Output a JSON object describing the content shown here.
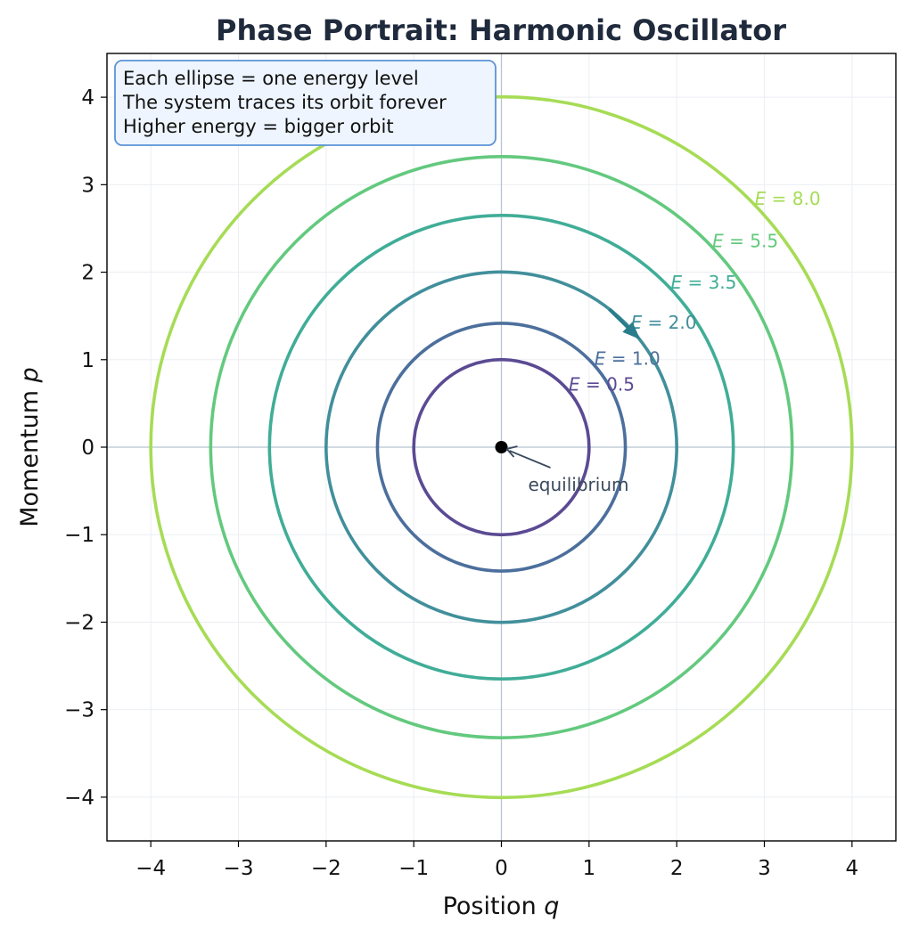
{
  "chart_data": {
    "type": "line",
    "title": "Phase Portrait: Harmonic Oscillator",
    "xlabel_text": "Position ",
    "xlabel_var": "q",
    "ylabel_text": "Momentum ",
    "ylabel_var": "p",
    "xlim": [
      -4.5,
      4.5
    ],
    "ylim": [
      -4.5,
      4.5
    ],
    "xticks": [
      -4,
      -3,
      -2,
      -1,
      0,
      1,
      2,
      3,
      4
    ],
    "yticks": [
      -4,
      -3,
      -2,
      -1,
      0,
      1,
      2,
      3,
      4
    ],
    "grid": true,
    "series": [
      {
        "energy": 0.5,
        "radius": 1.0,
        "color": "#5b4a93",
        "label_var": "E",
        "label_val": " = 0.5"
      },
      {
        "energy": 1.0,
        "radius": 1.414,
        "color": "#4c6f9c",
        "label_var": "E",
        "label_val": " = 1.0"
      },
      {
        "energy": 2.0,
        "radius": 2.0,
        "color": "#418f9b",
        "label_var": "E",
        "label_val": " = 2.0"
      },
      {
        "energy": 3.5,
        "radius": 2.646,
        "color": "#40ad97",
        "label_var": "E",
        "label_val": " = 3.5"
      },
      {
        "energy": 5.5,
        "radius": 3.317,
        "color": "#63c97e",
        "label_var": "E",
        "label_val": " = 5.5"
      },
      {
        "energy": 8.0,
        "radius": 4.0,
        "color": "#a6dc55",
        "label_var": "E",
        "label_val": " = 8.0"
      }
    ],
    "equilibrium": {
      "x": 0,
      "y": 0,
      "label": "equilibrium"
    },
    "info_box": [
      "Each ellipse = one energy level",
      "The system traces its orbit forever",
      "Higher energy = bigger orbit"
    ],
    "colors": {
      "title": "#1f2a3c",
      "info_box_fill": "#eef5ff",
      "info_box_border": "#5b93d8",
      "zero_lines": "#b8c4d2",
      "arrow": "#2a7d8c"
    }
  }
}
